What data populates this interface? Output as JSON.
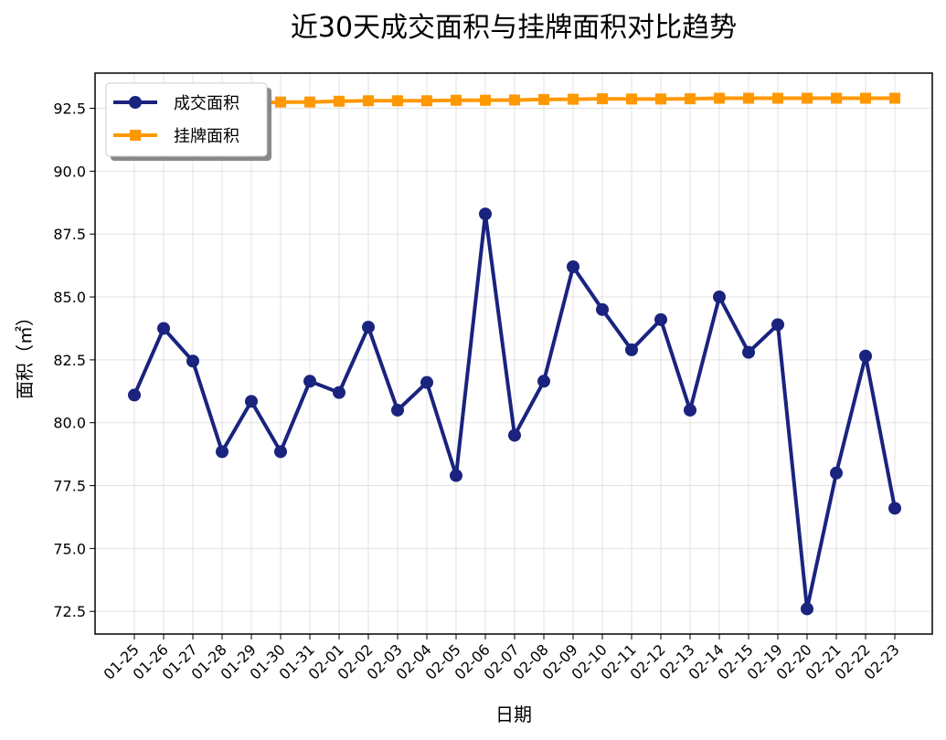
{
  "chart_data": {
    "type": "line",
    "title": "近30天成交面积与挂牌面积对比趋势",
    "xlabel": "日期",
    "ylabel": "面积（㎡）",
    "categories": [
      "01-25",
      "01-26",
      "01-27",
      "01-28",
      "01-29",
      "01-30",
      "01-31",
      "02-01",
      "02-02",
      "02-03",
      "02-04",
      "02-05",
      "02-06",
      "02-07",
      "02-08",
      "02-09",
      "02-10",
      "02-11",
      "02-12",
      "02-13",
      "02-14",
      "02-15",
      "02-19",
      "02-20",
      "02-21",
      "02-22",
      "02-23"
    ],
    "yticks": [
      "72.5",
      "75.0",
      "77.5",
      "80.0",
      "82.5",
      "85.0",
      "87.5",
      "90.0",
      "92.5"
    ],
    "ylim": [
      71.6,
      93.9
    ],
    "grid": true,
    "legend_position": "top-left",
    "series": [
      {
        "name": "成交面积",
        "color": "#1a237e",
        "marker": "circle",
        "values": [
          81.1,
          83.75,
          82.45,
          78.85,
          80.85,
          78.85,
          81.65,
          81.2,
          83.8,
          80.5,
          81.6,
          77.9,
          88.3,
          79.5,
          81.65,
          86.2,
          84.5,
          82.9,
          84.1,
          80.5,
          85.0,
          82.8,
          83.9,
          72.6,
          78.0,
          82.65,
          76.6
        ]
      },
      {
        "name": "挂牌面积",
        "color": "#ff9800",
        "marker": "square",
        "values": [
          92.7,
          92.7,
          92.7,
          92.7,
          92.7,
          92.75,
          92.75,
          92.78,
          92.8,
          92.8,
          92.8,
          92.82,
          92.82,
          92.83,
          92.85,
          92.86,
          92.88,
          92.87,
          92.87,
          92.88,
          92.9,
          92.9,
          92.9,
          92.9,
          92.9,
          92.9,
          92.9
        ]
      }
    ]
  }
}
